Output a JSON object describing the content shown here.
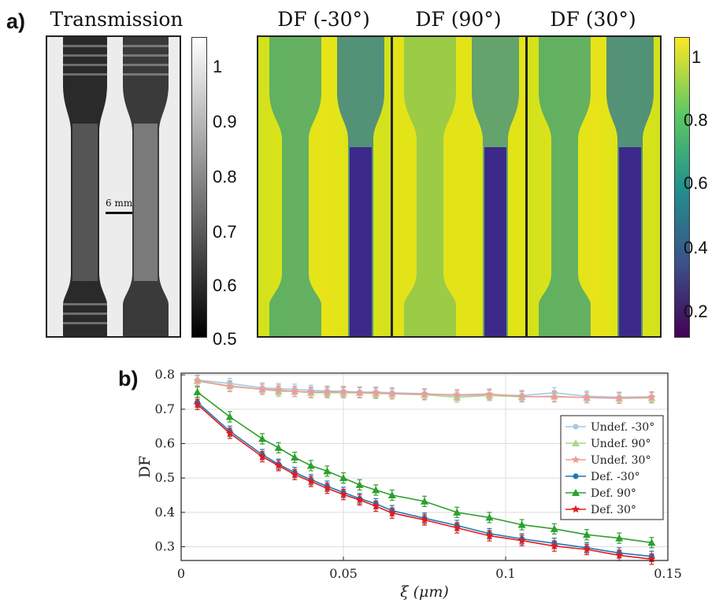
{
  "panel_a": {
    "label": "a)",
    "images": [
      {
        "title": "Transmission"
      },
      {
        "title": "DF (-30°)"
      },
      {
        "title": "DF (90°)"
      },
      {
        "title": "DF (30°)"
      }
    ],
    "scale_bar_label": "6 mm",
    "colorbar_gray_ticks": [
      "1",
      "0.9",
      "0.8",
      "0.7",
      "0.6",
      "0.5"
    ],
    "colorbar_viridis_ticks": [
      "1",
      "0.8",
      "0.6",
      "0.4",
      "0.2"
    ],
    "colors": {
      "viridis_low": "#440154",
      "viridis_mid": "#21918c",
      "viridis_high": "#fde725"
    }
  },
  "panel_b": {
    "label": "b)"
  },
  "chart_data": {
    "type": "line",
    "xlabel": "ξ (μm)",
    "ylabel": "DF",
    "xlim": [
      0,
      0.15
    ],
    "ylim": [
      0.26,
      0.805
    ],
    "xticks": [
      0,
      0.05,
      0.1,
      0.15
    ],
    "xtick_labels": [
      "0",
      "0.05",
      "0.1",
      "0.15"
    ],
    "yticks": [
      0.3,
      0.4,
      0.5,
      0.6,
      0.7,
      0.8
    ],
    "ytick_labels": [
      "0.3",
      "0.4",
      "0.5",
      "0.6",
      "0.7",
      "0.8"
    ],
    "grid": true,
    "legend_position": "right-middle",
    "x": [
      0.005,
      0.015,
      0.025,
      0.03,
      0.035,
      0.04,
      0.045,
      0.05,
      0.055,
      0.06,
      0.065,
      0.075,
      0.085,
      0.095,
      0.105,
      0.115,
      0.125,
      0.135,
      0.145
    ],
    "series": [
      {
        "name": "Undef. -30°",
        "color": "#a6c8e6",
        "marker": "circle",
        "values": [
          0.785,
          0.775,
          0.762,
          0.76,
          0.758,
          0.755,
          0.753,
          0.752,
          0.75,
          0.75,
          0.748,
          0.745,
          0.74,
          0.742,
          0.74,
          0.748,
          0.738,
          0.735,
          0.736
        ]
      },
      {
        "name": "Undef. 90°",
        "color": "#a6d98c",
        "marker": "triangle",
        "values": [
          0.783,
          0.768,
          0.758,
          0.752,
          0.752,
          0.748,
          0.748,
          0.748,
          0.748,
          0.746,
          0.745,
          0.742,
          0.735,
          0.74,
          0.736,
          0.738,
          0.734,
          0.732,
          0.733
        ]
      },
      {
        "name": "Undef. 30°",
        "color": "#f29a9a",
        "marker": "star",
        "values": [
          0.782,
          0.766,
          0.758,
          0.756,
          0.752,
          0.75,
          0.75,
          0.75,
          0.748,
          0.748,
          0.745,
          0.744,
          0.742,
          0.744,
          0.737,
          0.736,
          0.734,
          0.732,
          0.735
        ]
      },
      {
        "name": "Def. -30°",
        "color": "#1f77b4",
        "marker": "circle",
        "values": [
          0.72,
          0.636,
          0.568,
          0.54,
          0.516,
          0.495,
          0.476,
          0.458,
          0.44,
          0.425,
          0.405,
          0.383,
          0.362,
          0.338,
          0.323,
          0.31,
          0.297,
          0.282,
          0.272
        ]
      },
      {
        "name": "Def. 90°",
        "color": "#2ca02c",
        "marker": "triangle",
        "values": [
          0.75,
          0.678,
          0.614,
          0.588,
          0.56,
          0.536,
          0.52,
          0.5,
          0.48,
          0.465,
          0.45,
          0.432,
          0.4,
          0.385,
          0.364,
          0.352,
          0.335,
          0.325,
          0.312
        ]
      },
      {
        "name": "Def. 30°",
        "color": "#e41a1c",
        "marker": "star",
        "values": [
          0.714,
          0.63,
          0.562,
          0.536,
          0.51,
          0.49,
          0.47,
          0.452,
          0.436,
          0.418,
          0.398,
          0.378,
          0.355,
          0.332,
          0.318,
          0.302,
          0.292,
          0.275,
          0.264
        ]
      }
    ],
    "error_bar": 0.015
  }
}
